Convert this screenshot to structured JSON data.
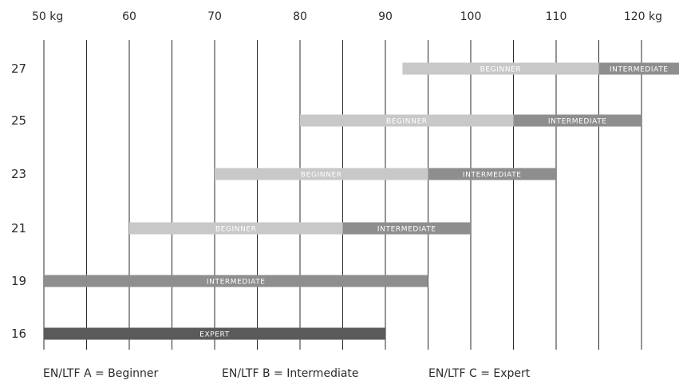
{
  "chart_data": {
    "type": "bar",
    "orientation": "horizontal-range",
    "x_ticks": [
      "50 kg",
      "60",
      "70",
      "80",
      "90",
      "100",
      "110",
      "120 kg"
    ],
    "xlim": [
      50,
      120
    ],
    "grid_step": 5,
    "grid": true,
    "categories": [
      "27",
      "25",
      "23",
      "21",
      "19",
      "16"
    ],
    "bars": [
      {
        "category": "27",
        "label": "BEGINNER",
        "start": 92,
        "end": 115,
        "level": "beginner"
      },
      {
        "category": "27",
        "label": "INTERMEDIATE",
        "start": 115,
        "end": 130,
        "level": "intermediate"
      },
      {
        "category": "25",
        "label": "BEGINNER",
        "start": 80,
        "end": 105,
        "level": "beginner"
      },
      {
        "category": "25",
        "label": "INTERMEDIATE",
        "start": 105,
        "end": 120,
        "level": "intermediate"
      },
      {
        "category": "23",
        "label": "BEGINNER",
        "start": 70,
        "end": 95,
        "level": "beginner"
      },
      {
        "category": "23",
        "label": "INTERMEDIATE",
        "start": 95,
        "end": 110,
        "level": "intermediate"
      },
      {
        "category": "21",
        "label": "BEGINNER",
        "start": 60,
        "end": 85,
        "level": "beginner"
      },
      {
        "category": "21",
        "label": "INTERMEDIATE",
        "start": 85,
        "end": 100,
        "level": "intermediate"
      },
      {
        "category": "19",
        "label": "INTERMEDIATE",
        "start": 50,
        "end": 95,
        "level": "intermediate"
      },
      {
        "category": "16",
        "label": "EXPERT",
        "start": 50,
        "end": 90,
        "level": "expert"
      }
    ],
    "colors": {
      "beginner": "#c8c8c8",
      "intermediate": "#8e8e8e",
      "expert": "#5a5a5a",
      "grid": "#2b2b2b"
    }
  },
  "legend": {
    "beginner": "EN/LTF A = Beginner",
    "intermediate": "EN/LTF B = Intermediate",
    "expert": "EN/LTF C = Expert"
  }
}
